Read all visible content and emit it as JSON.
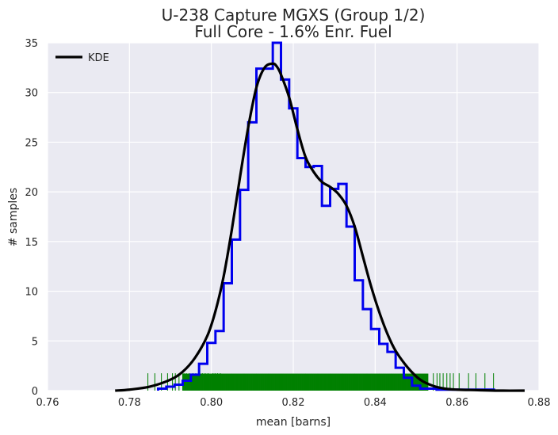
{
  "chart_data": {
    "type": "histogram",
    "title_line1": "U-238 Capture MGXS (Group 1/2)",
    "title_line2": "Full Core - 1.6% Enr. Fuel",
    "xlabel": "mean [barns]",
    "ylabel": "# samples",
    "xlim": [
      0.76,
      0.88
    ],
    "ylim": [
      0,
      35
    ],
    "x_ticks": [
      "0.76",
      "0.78",
      "0.80",
      "0.82",
      "0.84",
      "0.86",
      "0.88"
    ],
    "y_ticks": [
      "0",
      "5",
      "10",
      "15",
      "20",
      "25",
      "30",
      "35"
    ],
    "grid": true,
    "legend": {
      "position": "top-left",
      "entries": [
        "KDE"
      ]
    },
    "colors": {
      "histogram": "#0000ee",
      "kde": "#000000",
      "rug": "#008000",
      "background": "#eaeaf2",
      "grid": "#ffffff"
    },
    "histogram": {
      "bin_edges": [
        0.787,
        0.789,
        0.791,
        0.793,
        0.795,
        0.797,
        0.799,
        0.801,
        0.803,
        0.805,
        0.807,
        0.809,
        0.811,
        0.813,
        0.815,
        0.817,
        0.819,
        0.821,
        0.823,
        0.825,
        0.827,
        0.829,
        0.831,
        0.833,
        0.835,
        0.837,
        0.839,
        0.841,
        0.843,
        0.845,
        0.847,
        0.849,
        0.851,
        0.853,
        0.855,
        0.857,
        0.859,
        0.861,
        0.863,
        0.865,
        0.867,
        0.869
      ],
      "counts": [
        0.2,
        0.4,
        0.6,
        1.0,
        1.6,
        2.7,
        4.8,
        6.0,
        10.8,
        15.2,
        20.2,
        27.0,
        32.4,
        32.4,
        35.0,
        31.3,
        28.4,
        23.4,
        22.5,
        22.6,
        18.6,
        20.3,
        20.8,
        16.5,
        11.1,
        8.2,
        6.2,
        4.7,
        3.9,
        2.3,
        1.3,
        0.5,
        0.2,
        0.2,
        0.1,
        0.1,
        0.1,
        0.1,
        0.1,
        0.1,
        0.1
      ]
    },
    "kde": {
      "x": [
        0.7765,
        0.78,
        0.785,
        0.79,
        0.793,
        0.796,
        0.799,
        0.801,
        0.803,
        0.805,
        0.807,
        0.809,
        0.811,
        0.813,
        0.815,
        0.816,
        0.817,
        0.819,
        0.821,
        0.823,
        0.825,
        0.827,
        0.829,
        0.831,
        0.833,
        0.835,
        0.837,
        0.839,
        0.841,
        0.843,
        0.845,
        0.848,
        0.851,
        0.854,
        0.857,
        0.86,
        0.865,
        0.87,
        0.8765
      ],
      "y": [
        0.0,
        0.1,
        0.4,
        1.1,
        1.9,
        3.3,
        5.5,
        8.0,
        11.5,
        16.2,
        21.5,
        26.5,
        30.5,
        32.5,
        32.9,
        32.6,
        31.8,
        29.5,
        26.3,
        23.5,
        22.0,
        21.0,
        20.5,
        19.8,
        18.6,
        16.5,
        13.5,
        10.5,
        7.9,
        5.7,
        4.0,
        2.3,
        1.1,
        0.5,
        0.2,
        0.1,
        0.05,
        0.0,
        0.0
      ]
    },
    "rug_x": [
      0.7845,
      0.7862,
      0.7878,
      0.7893,
      0.7905,
      0.7912,
      0.7921,
      0.7933,
      0.7939,
      0.7946,
      0.7955,
      0.7962,
      0.7971,
      0.7978,
      0.7985,
      0.7992,
      0.8004,
      0.8009,
      0.8015,
      0.8022,
      0.8542,
      0.8551,
      0.8558,
      0.8566,
      0.8575,
      0.8583,
      0.8591,
      0.8605,
      0.8628,
      0.8646,
      0.8668,
      0.8689
    ],
    "rug_band": [
      0.793,
      0.853
    ]
  }
}
